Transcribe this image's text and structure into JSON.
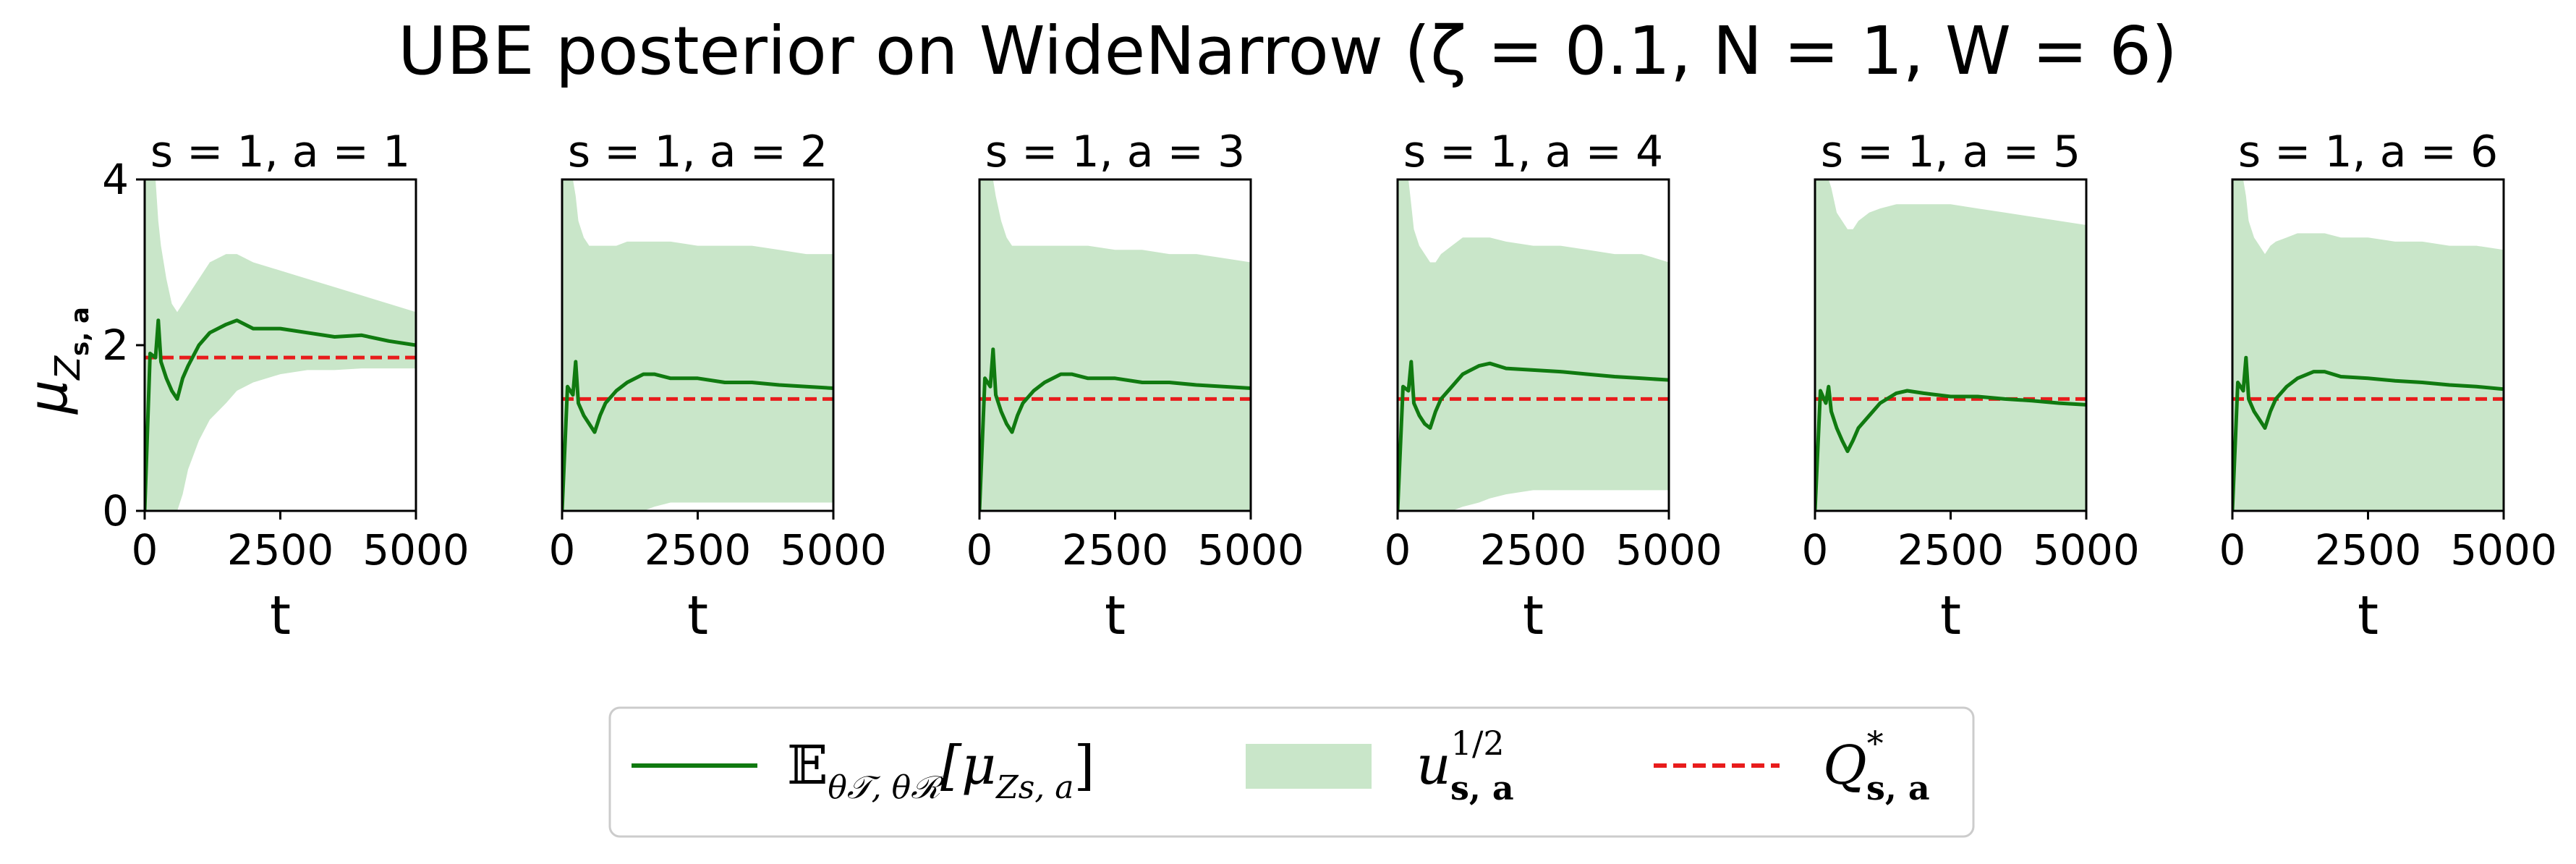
{
  "figure_title": "UBE posterior on WideNarrow (ζ = 0.1, N = 1, W = 6)",
  "y_label": "μ",
  "y_label_sub": "Z",
  "y_label_subsub": "s, a",
  "legend": {
    "mean": {
      "main": "𝔼",
      "sub": "θ𝒯, θℛ",
      "bracket": "[μ",
      "sub2": "Zs, a",
      "close": "]"
    },
    "unc": {
      "main": "u",
      "sub": "s, a",
      "sup": "1/2"
    },
    "opt": {
      "main": "Q",
      "sub": "s, a",
      "sup": "*"
    }
  },
  "colors": {
    "mean": "#107a10",
    "band": "#c9e6c9",
    "opt": "#e81c1c",
    "frame": "#000000"
  },
  "chart_data": [
    {
      "type": "line",
      "title": "s = 1, a = 1",
      "xlabel": "t",
      "xlim": [
        0,
        5000
      ],
      "ylim": [
        0,
        4
      ],
      "xticks": [
        "0",
        "2500",
        "5000"
      ],
      "yticks": [
        "0",
        "2",
        "4"
      ],
      "q_star": 1.85,
      "x": [
        0,
        100,
        200,
        250,
        300,
        400,
        500,
        600,
        700,
        800,
        1000,
        1200,
        1500,
        1700,
        2000,
        2500,
        3000,
        3500,
        4000,
        4500,
        5000
      ],
      "mean": [
        0,
        1.9,
        1.85,
        2.3,
        1.8,
        1.6,
        1.45,
        1.35,
        1.6,
        1.75,
        2.0,
        2.15,
        2.25,
        2.3,
        2.2,
        2.2,
        2.15,
        2.1,
        2.12,
        2.05,
        2.0
      ],
      "upper": [
        4,
        4,
        4,
        3.5,
        3.2,
        2.8,
        2.5,
        2.4,
        2.5,
        2.6,
        2.8,
        3.0,
        3.1,
        3.1,
        3.0,
        2.9,
        2.8,
        2.7,
        2.6,
        2.5,
        2.4
      ],
      "lower": [
        0,
        0,
        0,
        0,
        0,
        0,
        0,
        0,
        0.2,
        0.5,
        0.85,
        1.1,
        1.3,
        1.45,
        1.55,
        1.65,
        1.7,
        1.7,
        1.72,
        1.72,
        1.72
      ]
    },
    {
      "type": "line",
      "title": "s = 1, a = 2",
      "xlabel": "t",
      "xlim": [
        0,
        5000
      ],
      "ylim": [
        0,
        4
      ],
      "xticks": [
        "0",
        "2500",
        "5000"
      ],
      "yticks": [],
      "q_star": 1.35,
      "x": [
        0,
        100,
        200,
        250,
        300,
        400,
        500,
        600,
        700,
        800,
        1000,
        1200,
        1500,
        1700,
        2000,
        2500,
        3000,
        3500,
        4000,
        4500,
        5000
      ],
      "mean": [
        0,
        1.5,
        1.4,
        1.8,
        1.3,
        1.15,
        1.05,
        0.95,
        1.15,
        1.3,
        1.45,
        1.55,
        1.65,
        1.65,
        1.6,
        1.6,
        1.55,
        1.55,
        1.52,
        1.5,
        1.48
      ],
      "upper": [
        4,
        4,
        4,
        3.8,
        3.5,
        3.3,
        3.2,
        3.2,
        3.2,
        3.2,
        3.2,
        3.25,
        3.25,
        3.25,
        3.25,
        3.2,
        3.2,
        3.2,
        3.15,
        3.1,
        3.1
      ],
      "lower": [
        0,
        0,
        0,
        0,
        0,
        0,
        0,
        0,
        0,
        0,
        0,
        0,
        0,
        0.05,
        0.1,
        0.1,
        0.1,
        0.1,
        0.1,
        0.1,
        0.1
      ]
    },
    {
      "type": "line",
      "title": "s = 1, a = 3",
      "xlabel": "t",
      "xlim": [
        0,
        5000
      ],
      "ylim": [
        0,
        4
      ],
      "xticks": [
        "0",
        "2500",
        "5000"
      ],
      "yticks": [],
      "q_star": 1.35,
      "x": [
        0,
        100,
        200,
        250,
        300,
        400,
        500,
        600,
        700,
        800,
        1000,
        1200,
        1500,
        1700,
        2000,
        2500,
        3000,
        3500,
        4000,
        4500,
        5000
      ],
      "mean": [
        0,
        1.6,
        1.5,
        1.95,
        1.4,
        1.2,
        1.05,
        0.95,
        1.15,
        1.3,
        1.45,
        1.55,
        1.65,
        1.65,
        1.6,
        1.6,
        1.55,
        1.55,
        1.52,
        1.5,
        1.48
      ],
      "upper": [
        4,
        4,
        4,
        4,
        3.8,
        3.5,
        3.3,
        3.2,
        3.2,
        3.2,
        3.2,
        3.2,
        3.2,
        3.2,
        3.2,
        3.15,
        3.15,
        3.1,
        3.1,
        3.05,
        3.0
      ],
      "lower": [
        0,
        0,
        0,
        0,
        0,
        0,
        0,
        0,
        0,
        0,
        0,
        0,
        0,
        0,
        0,
        0,
        0,
        0,
        0,
        0,
        0
      ]
    },
    {
      "type": "line",
      "title": "s = 1, a = 4",
      "xlabel": "t",
      "xlim": [
        0,
        5000
      ],
      "ylim": [
        0,
        4
      ],
      "xticks": [
        "0",
        "2500",
        "5000"
      ],
      "yticks": [],
      "q_star": 1.35,
      "x": [
        0,
        100,
        200,
        250,
        300,
        400,
        500,
        600,
        700,
        800,
        1000,
        1200,
        1500,
        1700,
        2000,
        2500,
        3000,
        3500,
        4000,
        4500,
        5000
      ],
      "mean": [
        0,
        1.5,
        1.45,
        1.8,
        1.3,
        1.15,
        1.05,
        1.0,
        1.2,
        1.35,
        1.5,
        1.65,
        1.75,
        1.78,
        1.72,
        1.7,
        1.68,
        1.65,
        1.62,
        1.6,
        1.58
      ],
      "upper": [
        4,
        4,
        4,
        3.7,
        3.4,
        3.2,
        3.1,
        3.0,
        3.0,
        3.1,
        3.2,
        3.3,
        3.3,
        3.3,
        3.25,
        3.2,
        3.2,
        3.15,
        3.1,
        3.1,
        3.0
      ],
      "lower": [
        0,
        0,
        0,
        0,
        0,
        0,
        0,
        0,
        0,
        0,
        0,
        0.05,
        0.1,
        0.15,
        0.2,
        0.25,
        0.25,
        0.25,
        0.25,
        0.25,
        0.25
      ]
    },
    {
      "type": "line",
      "title": "s = 1, a = 5",
      "xlabel": "t",
      "xlim": [
        0,
        5000
      ],
      "ylim": [
        0,
        4
      ],
      "xticks": [
        "0",
        "2500",
        "5000"
      ],
      "yticks": [],
      "q_star": 1.35,
      "x": [
        0,
        100,
        200,
        250,
        300,
        400,
        500,
        600,
        700,
        800,
        1000,
        1200,
        1500,
        1700,
        2000,
        2500,
        3000,
        3500,
        4000,
        4500,
        5000
      ],
      "mean": [
        0,
        1.45,
        1.3,
        1.5,
        1.2,
        1.0,
        0.85,
        0.72,
        0.85,
        1.0,
        1.15,
        1.3,
        1.42,
        1.45,
        1.42,
        1.38,
        1.38,
        1.35,
        1.33,
        1.3,
        1.28
      ],
      "upper": [
        4,
        4,
        4,
        4,
        3.9,
        3.6,
        3.5,
        3.4,
        3.4,
        3.5,
        3.6,
        3.65,
        3.7,
        3.7,
        3.7,
        3.7,
        3.65,
        3.6,
        3.55,
        3.5,
        3.45
      ],
      "lower": [
        0,
        0,
        0,
        0,
        0,
        0,
        0,
        0,
        0,
        0,
        0,
        0,
        0,
        0,
        0,
        0,
        0,
        0,
        0,
        0,
        0
      ]
    },
    {
      "type": "line",
      "title": "s = 1, a = 6",
      "xlabel": "t",
      "xlim": [
        0,
        5000
      ],
      "ylim": [
        0,
        4
      ],
      "xticks": [
        "0",
        "2500",
        "5000"
      ],
      "yticks": [],
      "q_star": 1.35,
      "x": [
        0,
        100,
        200,
        250,
        300,
        400,
        500,
        600,
        700,
        800,
        1000,
        1200,
        1500,
        1700,
        2000,
        2500,
        3000,
        3500,
        4000,
        4500,
        5000
      ],
      "mean": [
        0,
        1.55,
        1.45,
        1.85,
        1.35,
        1.2,
        1.1,
        1.0,
        1.2,
        1.35,
        1.5,
        1.6,
        1.68,
        1.68,
        1.62,
        1.6,
        1.57,
        1.55,
        1.52,
        1.5,
        1.47
      ],
      "upper": [
        4,
        4,
        4,
        3.8,
        3.5,
        3.3,
        3.2,
        3.1,
        3.2,
        3.25,
        3.3,
        3.35,
        3.35,
        3.35,
        3.3,
        3.3,
        3.25,
        3.25,
        3.2,
        3.2,
        3.15
      ],
      "lower": [
        0,
        0,
        0,
        0,
        0,
        0,
        0,
        0,
        0,
        0,
        0,
        0,
        0,
        0,
        0,
        0,
        0,
        0,
        0,
        0,
        0
      ]
    }
  ]
}
